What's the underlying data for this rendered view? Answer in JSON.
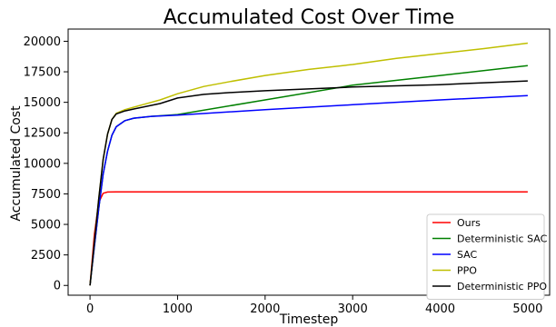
{
  "chart_data": {
    "type": "line",
    "title": "Accumulated Cost Over Time",
    "xlabel": "Timestep",
    "ylabel": "Accumulated Cost",
    "xlim": [
      -250,
      5250
    ],
    "ylim": [
      -800,
      21000
    ],
    "xticks": [
      0,
      1000,
      2000,
      3000,
      4000,
      5000
    ],
    "yticks": [
      0,
      2500,
      5000,
      7500,
      10000,
      12500,
      15000,
      17500,
      20000
    ],
    "grid": false,
    "legend_position": "bottom-right",
    "series": [
      {
        "name": "Ours",
        "color": "#ff0000",
        "x": [
          0,
          50,
          100,
          150,
          200,
          300,
          500,
          1000,
          2000,
          3000,
          4000,
          5000
        ],
        "y": [
          0,
          4200,
          6800,
          7550,
          7650,
          7670,
          7670,
          7670,
          7670,
          7670,
          7670,
          7670
        ]
      },
      {
        "name": "Deterministic SAC",
        "color": "#008000",
        "x": [
          0,
          50,
          100,
          150,
          200,
          250,
          300,
          400,
          500,
          700,
          1000,
          2000,
          3000,
          4000,
          5000
        ],
        "y": [
          0,
          3200,
          6300,
          9100,
          11000,
          12300,
          13000,
          13500,
          13700,
          13850,
          14000,
          15200,
          16400,
          17200,
          18000
        ]
      },
      {
        "name": "SAC",
        "color": "#0000ff",
        "x": [
          0,
          50,
          100,
          150,
          200,
          250,
          300,
          400,
          500,
          700,
          1000,
          2000,
          3000,
          4000,
          5000
        ],
        "y": [
          0,
          3200,
          6300,
          9100,
          11000,
          12300,
          13000,
          13500,
          13700,
          13850,
          13950,
          14400,
          14800,
          15200,
          15550
        ]
      },
      {
        "name": "PPO",
        "color": "#bfbf00",
        "x": [
          0,
          50,
          100,
          150,
          200,
          250,
          300,
          400,
          500,
          600,
          800,
          1000,
          1300,
          1600,
          2000,
          2500,
          3000,
          3500,
          4000,
          4500,
          5000
        ],
        "y": [
          0,
          3600,
          7100,
          10300,
          12400,
          13600,
          14100,
          14400,
          14600,
          14800,
          15200,
          15700,
          16300,
          16700,
          17200,
          17700,
          18100,
          18600,
          19000,
          19400,
          19850
        ]
      },
      {
        "name": "Deterministic PPO",
        "color": "#000000",
        "x": [
          0,
          50,
          100,
          150,
          200,
          250,
          300,
          400,
          500,
          600,
          800,
          1000,
          1300,
          1600,
          2000,
          2500,
          3000,
          3500,
          4000,
          4500,
          5000
        ],
        "y": [
          0,
          3600,
          7100,
          10300,
          12400,
          13600,
          14050,
          14300,
          14450,
          14600,
          14900,
          15350,
          15650,
          15800,
          15950,
          16100,
          16250,
          16350,
          16450,
          16600,
          16750
        ]
      }
    ]
  }
}
